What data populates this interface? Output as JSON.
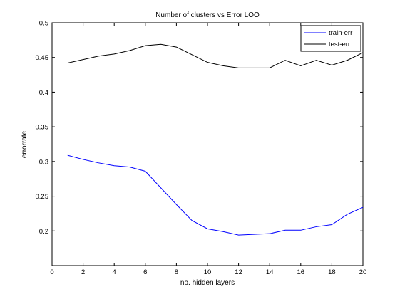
{
  "chart_data": {
    "type": "line",
    "title": "Number of clusters vs Error LOO",
    "xlabel": "no. hidden layers",
    "ylabel": "errorrate",
    "xlim": [
      0,
      20
    ],
    "ylim": [
      0.15,
      0.5
    ],
    "xticks": [
      0,
      2,
      4,
      6,
      8,
      10,
      12,
      14,
      16,
      18,
      20
    ],
    "yticks": [
      0.2,
      0.25,
      0.3,
      0.35,
      0.4,
      0.45,
      0.5
    ],
    "ytick_labels": [
      "0.2",
      "0.25",
      "0.3",
      "0.35",
      "0.4",
      "0.45",
      "0.5"
    ],
    "grid": false,
    "legend": "top-right",
    "x": [
      1,
      2,
      3,
      4,
      5,
      6,
      7,
      8,
      9,
      10,
      11,
      12,
      13,
      14,
      15,
      16,
      17,
      18,
      19,
      20
    ],
    "series": [
      {
        "name": "train-err",
        "color": "#0000ff",
        "values": [
          0.309,
          0.303,
          0.298,
          0.294,
          0.292,
          0.286,
          0.262,
          0.238,
          0.215,
          0.203,
          0.199,
          0.194,
          0.195,
          0.196,
          0.201,
          0.201,
          0.206,
          0.209,
          0.224,
          0.234
        ]
      },
      {
        "name": "test-err",
        "color": "#000000",
        "values": [
          0.442,
          0.447,
          0.452,
          0.455,
          0.46,
          0.467,
          0.469,
          0.465,
          0.454,
          0.443,
          0.438,
          0.435,
          0.435,
          0.435,
          0.446,
          0.438,
          0.446,
          0.439,
          0.446,
          0.457
        ]
      }
    ]
  }
}
